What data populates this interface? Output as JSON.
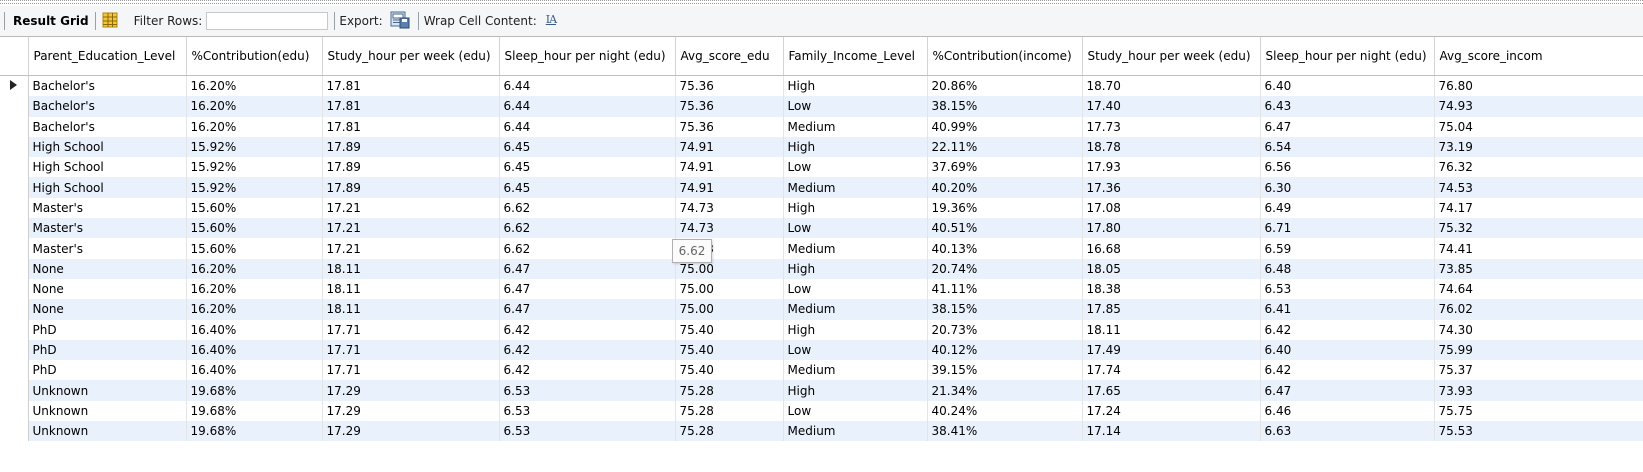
{
  "toolbar": {
    "title": "Result Grid",
    "filter_label": "Filter Rows:",
    "filter_value": "",
    "export_label": "Export:",
    "wrap_label": "Wrap Cell Content:",
    "wrap_icon_text": "IA"
  },
  "grid": {
    "columns": [
      "Parent_Education_Level",
      "%Contribution(edu)",
      "Study_hour per week (edu)",
      "Sleep_hour per night (edu)",
      "Avg_score_edu",
      "Family_Income_Level",
      "%Contribution(income)",
      "Study_hour per week (edu)",
      "Sleep_hour per night (edu)",
      "Avg_score_incom"
    ],
    "rows": [
      [
        "Bachelor's",
        "16.20%",
        "17.81",
        "6.44",
        "75.36",
        "High",
        "20.86%",
        "18.70",
        "6.40",
        "76.80"
      ],
      [
        "Bachelor's",
        "16.20%",
        "17.81",
        "6.44",
        "75.36",
        "Low",
        "38.15%",
        "17.40",
        "6.43",
        "74.93"
      ],
      [
        "Bachelor's",
        "16.20%",
        "17.81",
        "6.44",
        "75.36",
        "Medium",
        "40.99%",
        "17.73",
        "6.47",
        "75.04"
      ],
      [
        "High School",
        "15.92%",
        "17.89",
        "6.45",
        "74.91",
        "High",
        "22.11%",
        "18.78",
        "6.54",
        "73.19"
      ],
      [
        "High School",
        "15.92%",
        "17.89",
        "6.45",
        "74.91",
        "Low",
        "37.69%",
        "17.93",
        "6.56",
        "76.32"
      ],
      [
        "High School",
        "15.92%",
        "17.89",
        "6.45",
        "74.91",
        "Medium",
        "40.20%",
        "17.36",
        "6.30",
        "74.53"
      ],
      [
        "Master's",
        "15.60%",
        "17.21",
        "6.62",
        "74.73",
        "High",
        "19.36%",
        "17.08",
        "6.49",
        "74.17"
      ],
      [
        "Master's",
        "15.60%",
        "17.21",
        "6.62",
        "74.73",
        "Low",
        "40.51%",
        "17.80",
        "6.71",
        "75.32"
      ],
      [
        "Master's",
        "15.60%",
        "17.21",
        "6.62",
        "74.73",
        "Medium",
        "40.13%",
        "16.68",
        "6.59",
        "74.41"
      ],
      [
        "None",
        "16.20%",
        "18.11",
        "6.47",
        "75.00",
        "High",
        "20.74%",
        "18.05",
        "6.48",
        "73.85"
      ],
      [
        "None",
        "16.20%",
        "18.11",
        "6.47",
        "75.00",
        "Low",
        "41.11%",
        "18.38",
        "6.53",
        "74.64"
      ],
      [
        "None",
        "16.20%",
        "18.11",
        "6.47",
        "75.00",
        "Medium",
        "38.15%",
        "17.85",
        "6.41",
        "76.02"
      ],
      [
        "PhD",
        "16.40%",
        "17.71",
        "6.42",
        "75.40",
        "High",
        "20.73%",
        "18.11",
        "6.42",
        "74.30"
      ],
      [
        "PhD",
        "16.40%",
        "17.71",
        "6.42",
        "75.40",
        "Low",
        "40.12%",
        "17.49",
        "6.40",
        "75.99"
      ],
      [
        "PhD",
        "16.40%",
        "17.71",
        "6.42",
        "75.40",
        "Medium",
        "39.15%",
        "17.74",
        "6.42",
        "75.37"
      ],
      [
        "Unknown",
        "19.68%",
        "17.29",
        "6.53",
        "75.28",
        "High",
        "21.34%",
        "17.65",
        "6.47",
        "73.93"
      ],
      [
        "Unknown",
        "19.68%",
        "17.29",
        "6.53",
        "75.28",
        "Low",
        "40.24%",
        "17.24",
        "6.46",
        "75.75"
      ],
      [
        "Unknown",
        "19.68%",
        "17.29",
        "6.53",
        "75.28",
        "Medium",
        "38.41%",
        "17.14",
        "6.63",
        "75.53"
      ]
    ]
  },
  "tooltip": {
    "text": "6.62"
  },
  "colors": {
    "alt_row": "#e9f1fc",
    "toolbar_bg": "#f5f6f7"
  },
  "icons": [
    "result-grid-icon",
    "export-icon",
    "wrap-cell-icon",
    "current-row-icon"
  ]
}
